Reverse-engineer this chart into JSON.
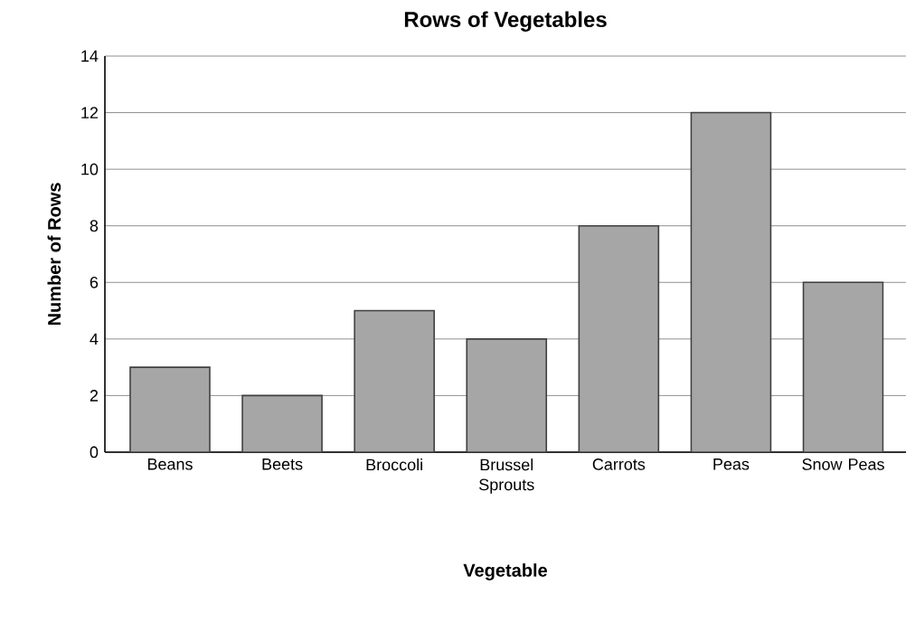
{
  "chart_data": {
    "type": "bar",
    "title": "Rows of Vegetables",
    "xlabel": "Vegetable",
    "ylabel": "Number of Rows",
    "categories": [
      "Beans",
      "Beets",
      "Broccoli",
      "Brussel Sprouts",
      "Carrots",
      "Peas",
      "Snow Peas"
    ],
    "values": [
      3,
      2,
      5,
      4,
      8,
      12,
      6
    ],
    "color": "#a6a6a6",
    "ylim": [
      0,
      14
    ],
    "yticks": [
      0,
      2,
      4,
      6,
      8,
      10,
      12,
      14
    ],
    "grid": "y"
  }
}
